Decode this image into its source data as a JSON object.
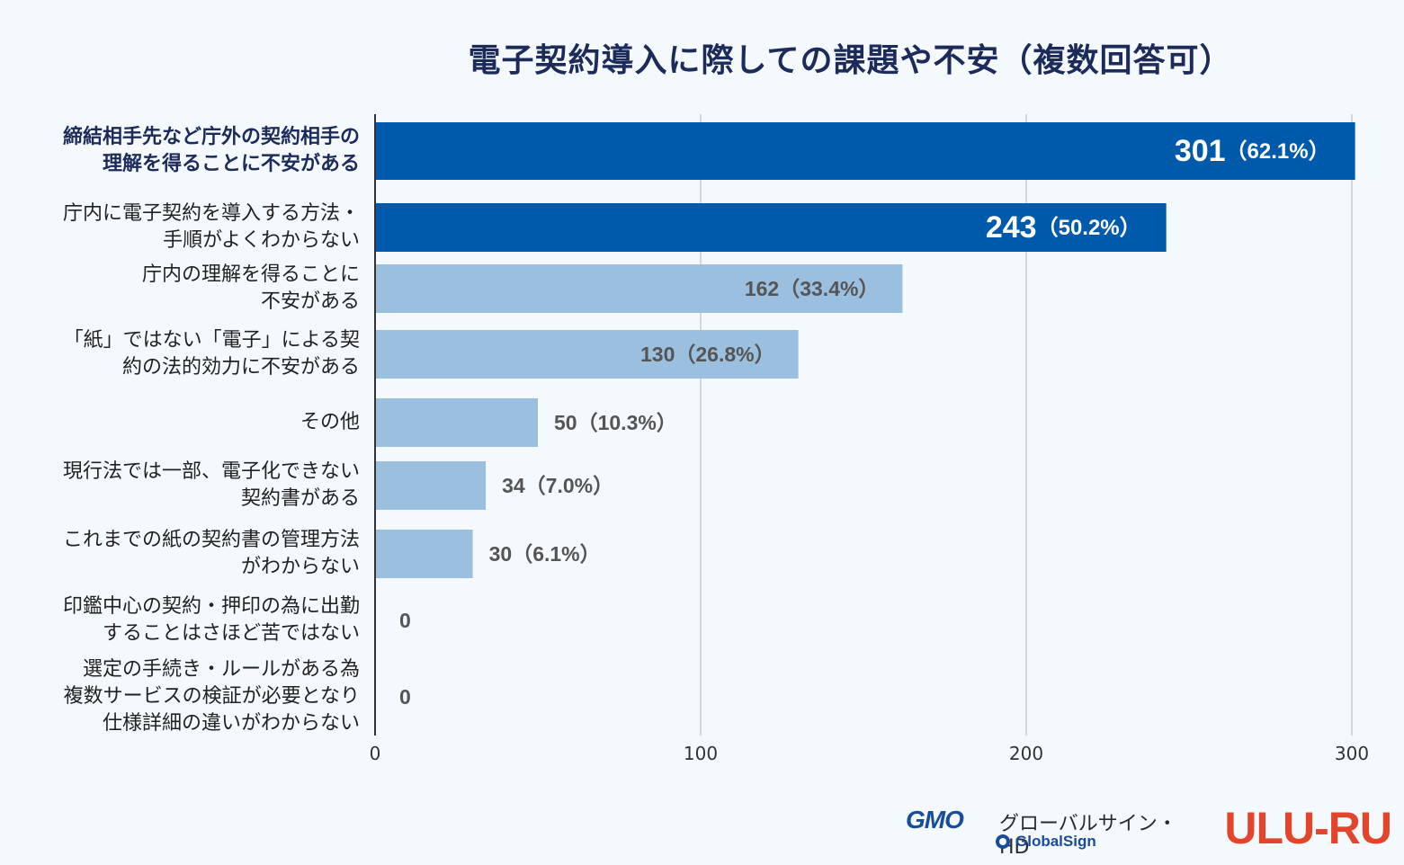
{
  "chart_data": {
    "type": "bar",
    "orientation": "horizontal",
    "title": "電子契約導入に際しての課題や不安（複数回答可）",
    "categories": [
      [
        "締結相手先など庁外の契約相手の",
        "理解を得ることに不安がある"
      ],
      [
        "庁内に電子契約を導入する方法・",
        "手順がよくわからない"
      ],
      [
        "庁内の理解を得ることに",
        "不安がある"
      ],
      [
        "「紙」ではない「電子」による契",
        "約の法的効力に不安がある"
      ],
      [
        "その他"
      ],
      [
        "現行法では一部、電子化できない",
        "契約書がある"
      ],
      [
        "これまでの紙の契約書の管理方法",
        "がわからない"
      ],
      [
        "印鑑中心の契約・押印の為に出勤",
        "することはさほど苦ではない"
      ],
      [
        "選定の手続き・ルールがある為",
        "複数サービスの検証が必要となり",
        "仕様詳細の違いがわからない"
      ]
    ],
    "values": [
      301,
      243,
      162,
      130,
      50,
      34,
      30,
      0,
      0
    ],
    "value_labels": [
      "301",
      "243",
      "162",
      "130",
      "50",
      "34",
      "30",
      "0",
      "0"
    ],
    "percent_labels": [
      "（62.1%）",
      "（50.2%）",
      "（33.4%）",
      "（26.8%）",
      "（10.3%）",
      "（7.0%）",
      "（6.1%）",
      "",
      ""
    ],
    "highlight": [
      true,
      true,
      false,
      false,
      false,
      false,
      false,
      false,
      false
    ],
    "xlim": [
      0,
      300
    ],
    "xticks": [
      0,
      100,
      200,
      300
    ],
    "xtick_labels": [
      "0",
      "100",
      "200",
      "300"
    ],
    "grid": true,
    "colors": {
      "highlight": "#005aab",
      "normal": "#9bbfdf",
      "grid": "#c8cdd2",
      "axis": "#333333"
    }
  },
  "logos": {
    "gmo_mark": "GMO",
    "gmo_name": "グローバルサイン・HD",
    "globalsign": "GlobalSign",
    "uluru": "ULU-RU"
  }
}
